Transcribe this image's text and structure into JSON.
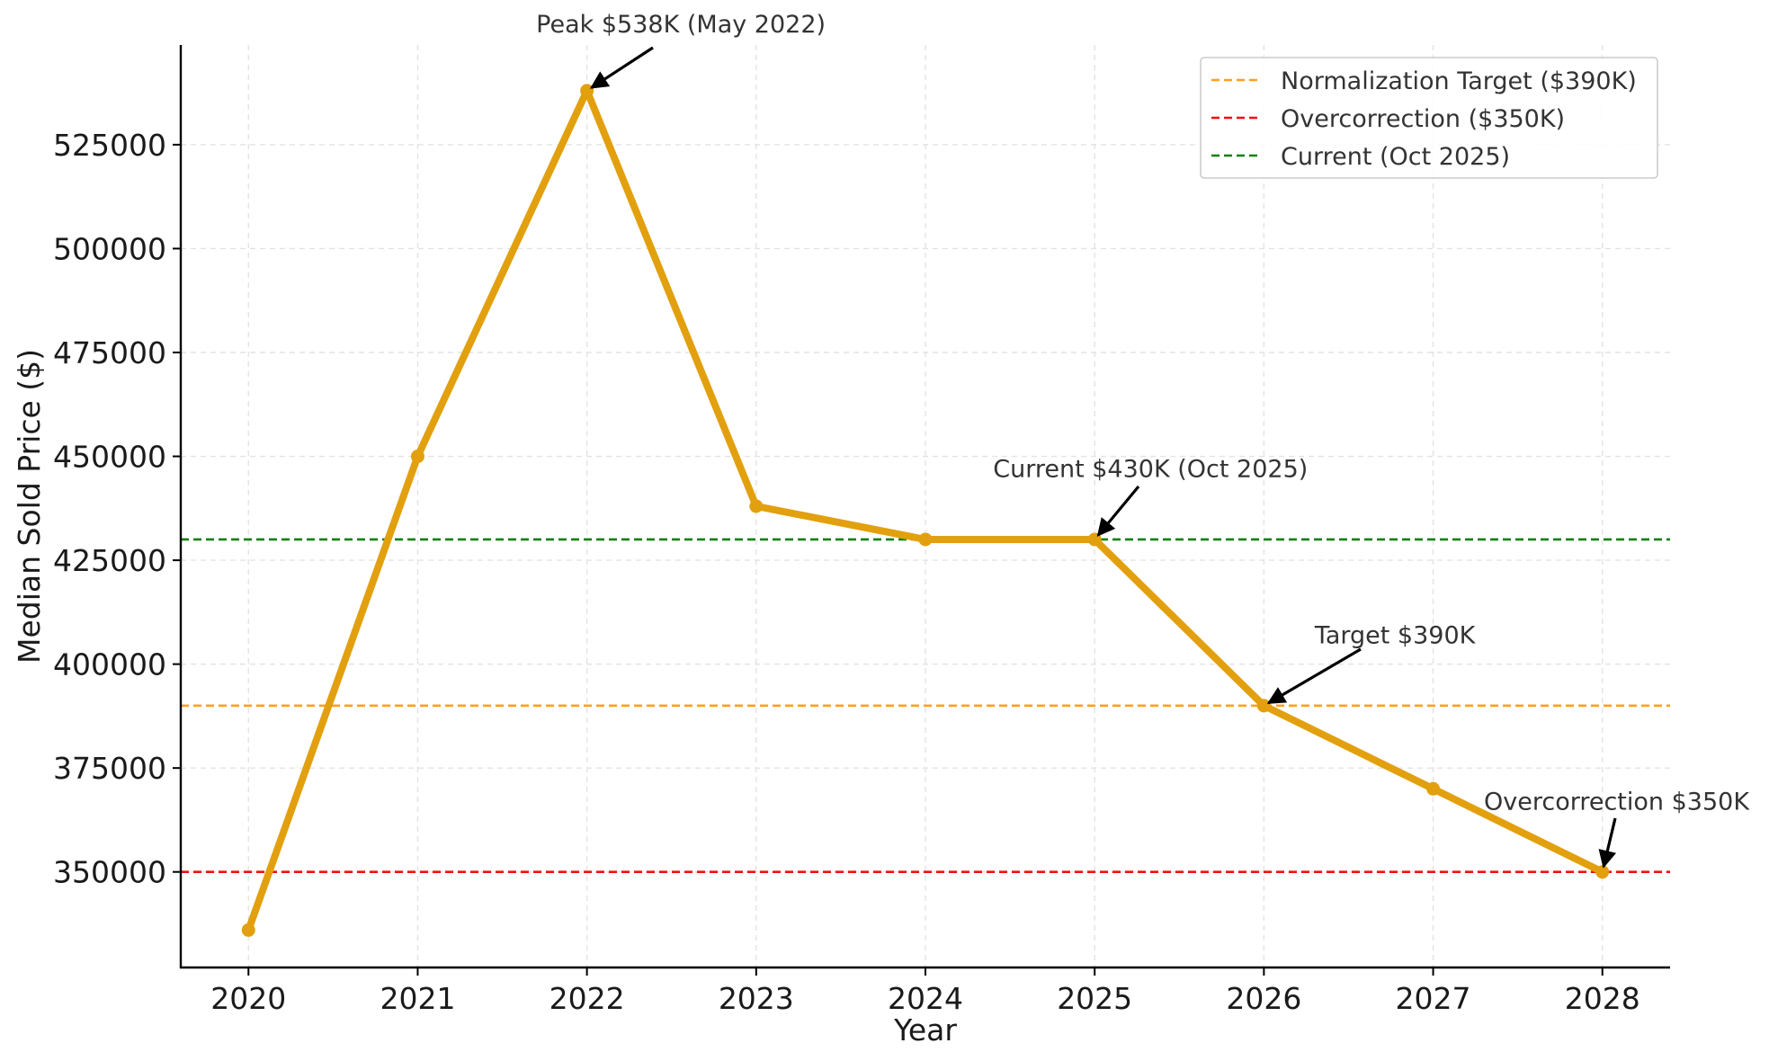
{
  "chart_data": {
    "type": "line",
    "title": "",
    "xlabel": "Year",
    "ylabel": "Median Sold Price ($)",
    "x": [
      2020,
      2021,
      2022,
      2023,
      2024,
      2025,
      2026,
      2027,
      2028
    ],
    "x_tick_labels": [
      "2020",
      "2021",
      "2022",
      "2023",
      "2024",
      "2025",
      "2026",
      "2027",
      "2028"
    ],
    "xlim": [
      2019.6,
      2028.4
    ],
    "ylim": [
      327000,
      549000
    ],
    "y_ticks": [
      350000,
      375000,
      400000,
      425000,
      450000,
      475000,
      500000,
      525000
    ],
    "y_tick_labels": [
      "350000",
      "375000",
      "400000",
      "425000",
      "450000",
      "475000",
      "500000",
      "525000"
    ],
    "grid": true,
    "legend_position": "top-right",
    "series": [
      {
        "values": [
          336000,
          450000,
          538000,
          438000,
          430000,
          430000,
          390000,
          370000,
          350000
        ],
        "color": "#E2A00E"
      }
    ],
    "reference_lines": [
      {
        "name": "Normalization Target ($390K)",
        "value": 390000,
        "color": "#FFA020"
      },
      {
        "name": "Overcorrection ($350K)",
        "value": 350000,
        "color": "#F01010"
      },
      {
        "name": "Current (Oct 2025)",
        "value": 430000,
        "color": "#108010"
      }
    ],
    "annotations": [
      {
        "text": "Peak $538K (May 2022)",
        "x": 2022,
        "y": 538000,
        "text_x": 2021.7,
        "text_y": 552000
      },
      {
        "text": "Current $430K (Oct 2025)",
        "x": 2025,
        "y": 430000,
        "text_x": 2024.4,
        "text_y": 445000
      },
      {
        "text": "Target $390K",
        "x": 2026,
        "y": 390000,
        "text_x": 2026.3,
        "text_y": 405000
      },
      {
        "text": "Overcorrection $350K",
        "x": 2028,
        "y": 350000,
        "text_x": 2027.3,
        "text_y": 365000
      }
    ]
  }
}
